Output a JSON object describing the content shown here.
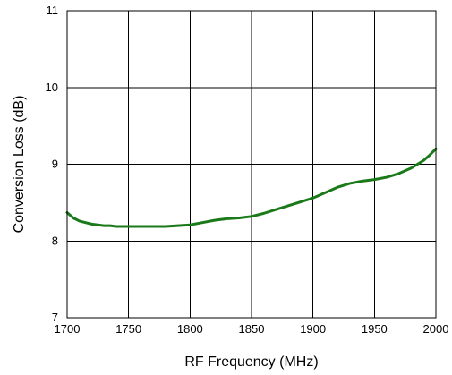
{
  "chart_data": {
    "type": "line",
    "title": "",
    "xlabel": "RF Frequency (MHz)",
    "ylabel": "Conversion Loss (dB)",
    "xlim": [
      1700,
      2000
    ],
    "ylim": [
      7,
      11
    ],
    "xticks": [
      "1700",
      "1750",
      "1800",
      "1850",
      "1900",
      "1950",
      "2000"
    ],
    "yticks": [
      "7",
      "8",
      "9",
      "10",
      "11"
    ],
    "grid": true,
    "line_color": "#1a7a1a",
    "series": [
      {
        "x": [
          1700,
          1705,
          1710,
          1715,
          1720,
          1725,
          1730,
          1735,
          1740,
          1750,
          1760,
          1770,
          1780,
          1790,
          1800,
          1810,
          1820,
          1830,
          1840,
          1850,
          1860,
          1870,
          1880,
          1890,
          1900,
          1910,
          1920,
          1930,
          1940,
          1950,
          1960,
          1970,
          1980,
          1985,
          1990,
          1995,
          2000
        ],
        "y": [
          8.37,
          8.3,
          8.26,
          8.24,
          8.22,
          8.21,
          8.2,
          8.2,
          8.19,
          8.19,
          8.19,
          8.19,
          8.19,
          8.2,
          8.21,
          8.24,
          8.27,
          8.29,
          8.3,
          8.32,
          8.36,
          8.41,
          8.46,
          8.51,
          8.56,
          8.63,
          8.7,
          8.75,
          8.78,
          8.8,
          8.83,
          8.88,
          8.95,
          9.0,
          9.05,
          9.12,
          9.2
        ]
      }
    ]
  }
}
